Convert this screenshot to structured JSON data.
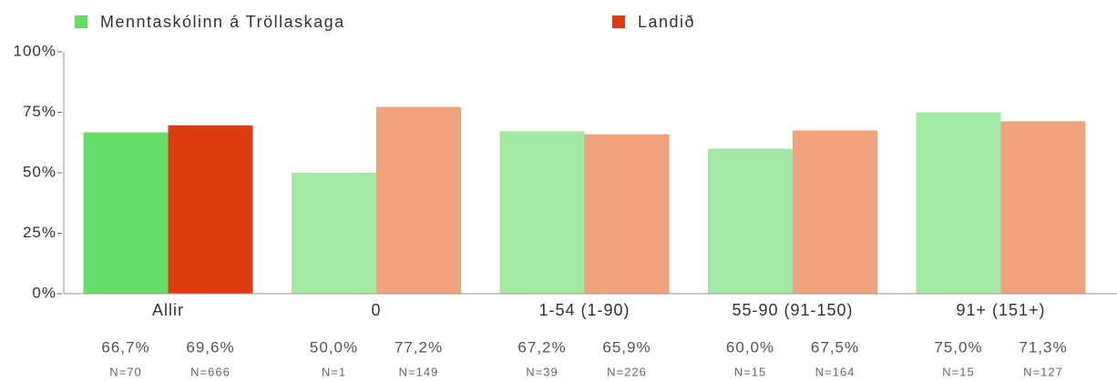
{
  "chart_data": {
    "type": "bar",
    "categories": [
      "Allir",
      "0",
      "1-54 (1-90)",
      "55-90 (91-150)",
      "91+ (151+)"
    ],
    "series": [
      {
        "name": "Menntaskólinn á Tröllaskaga",
        "color": "#66dd66",
        "colors": [
          "#66dd66",
          "#a3e8a3",
          "#a3e8a3",
          "#a3e8a3",
          "#a3e8a3"
        ],
        "values": [
          66.7,
          50.0,
          67.2,
          60.0,
          75.0
        ],
        "value_labels": [
          "66,7%",
          "50,0%",
          "67,2%",
          "60,0%",
          "75,0%"
        ],
        "n_labels": [
          "N=70",
          "N=1",
          "N=39",
          "N=15",
          "N=15"
        ]
      },
      {
        "name": "Landið",
        "color": "#dd3b12",
        "colors": [
          "#dd3b12",
          "#efa27c",
          "#efa27c",
          "#efa27c",
          "#efa27c"
        ],
        "values": [
          69.6,
          77.2,
          65.9,
          67.5,
          71.3
        ],
        "value_labels": [
          "69,6%",
          "77,2%",
          "65,9%",
          "67,5%",
          "71,3%"
        ],
        "n_labels": [
          "N=666",
          "N=149",
          "N=226",
          "N=164",
          "N=127"
        ]
      }
    ],
    "ylim": [
      0,
      100
    ],
    "yticks": [
      {
        "value": 0,
        "label": "0%"
      },
      {
        "value": 25,
        "label": "25%"
      },
      {
        "value": 50,
        "label": "50%"
      },
      {
        "value": 75,
        "label": "75%"
      },
      {
        "value": 100,
        "label": "100%"
      }
    ],
    "legend": "top"
  }
}
